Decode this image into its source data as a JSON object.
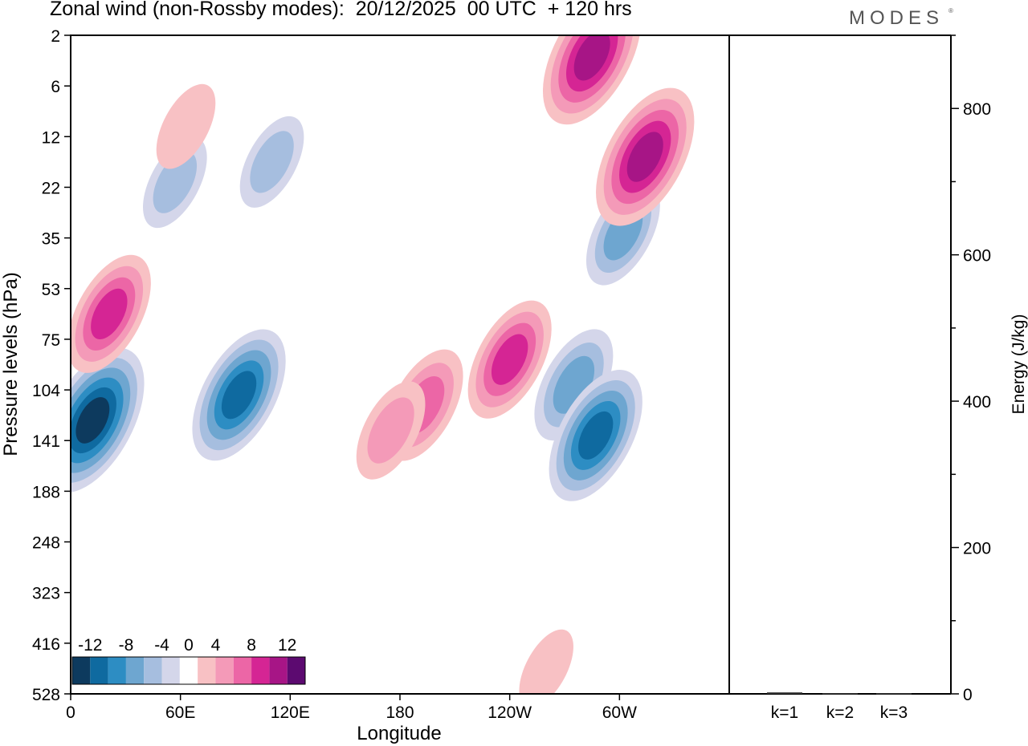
{
  "title": "Zonal wind (non-Rossby modes):  20/12/2025  00 UTC  + 120 hrs",
  "brand": "MODES",
  "brand_mark": "®",
  "colors": {
    "blue6": "#0d3a5e",
    "blue5": "#0f6aa0",
    "blue4": "#2d8dc3",
    "blue3": "#6ea6d0",
    "blue2": "#a6bedf",
    "blue1": "#d4d6ea",
    "white": "#ffffff",
    "pink1": "#f8c1c4",
    "pink2": "#f49ab8",
    "pink3": "#ec66a6",
    "pink4": "#d52594",
    "pink5": "#a71586",
    "pink6": "#5c0a70"
  },
  "chart_data": [
    {
      "type": "heatmap",
      "title": "Zonal wind (non-Rossby modes)",
      "xlabel": "Longitude",
      "ylabel": "Pressure levels (hPa)",
      "x_ticks": [
        "0",
        "60E",
        "120E",
        "180",
        "120W",
        "60W"
      ],
      "x_tick_degrees": [
        0,
        60,
        120,
        180,
        240,
        300
      ],
      "xlim": [
        0,
        360
      ],
      "y_ticks": [
        "2",
        "6",
        "12",
        "22",
        "35",
        "53",
        "75",
        "104",
        "141",
        "188",
        "248",
        "323",
        "416",
        "528"
      ],
      "colorbar": {
        "labels": [
          "-12",
          "-8",
          "-4",
          "0",
          "4",
          "8",
          "12"
        ],
        "levels": [
          -14,
          -12,
          -10,
          -8,
          -6,
          -4,
          -2,
          2,
          4,
          6,
          8,
          10,
          12,
          14
        ]
      },
      "features": [
        {
          "lon": 12,
          "level_index": 7.6,
          "value": -13
        },
        {
          "lon": 92,
          "level_index": 7.1,
          "value": -11
        },
        {
          "lon": 57,
          "level_index": 2.9,
          "value": -5
        },
        {
          "lon": 110,
          "level_index": 2.5,
          "value": -5
        },
        {
          "lon": 21,
          "level_index": 5.5,
          "value": 9
        },
        {
          "lon": 193,
          "level_index": 7.3,
          "value": 8
        },
        {
          "lon": 240,
          "level_index": 6.4,
          "value": 9
        },
        {
          "lon": 275,
          "level_index": 6.9,
          "value": -8
        },
        {
          "lon": 287,
          "level_index": 7.9,
          "value": -11
        },
        {
          "lon": 302,
          "level_index": 3.9,
          "value": -7
        },
        {
          "lon": 285,
          "level_index": 0.4,
          "value": 12
        },
        {
          "lon": 314,
          "level_index": 2.4,
          "value": 12
        },
        {
          "lon": 175,
          "level_index": 7.8,
          "value": 6
        },
        {
          "lon": 260,
          "level_index": 12.5,
          "value": 3
        },
        {
          "lon": 63,
          "level_index": 1.8,
          "value": 4
        }
      ]
    },
    {
      "type": "bar",
      "categories": [
        "k=1",
        "k=2",
        "k=3"
      ],
      "values": [
        2,
        1,
        1
      ],
      "ylabel": "Energy (J/kg)",
      "ylim": [
        0,
        900
      ],
      "y_ticks": [
        "0",
        "200",
        "400",
        "600",
        "800"
      ]
    }
  ]
}
